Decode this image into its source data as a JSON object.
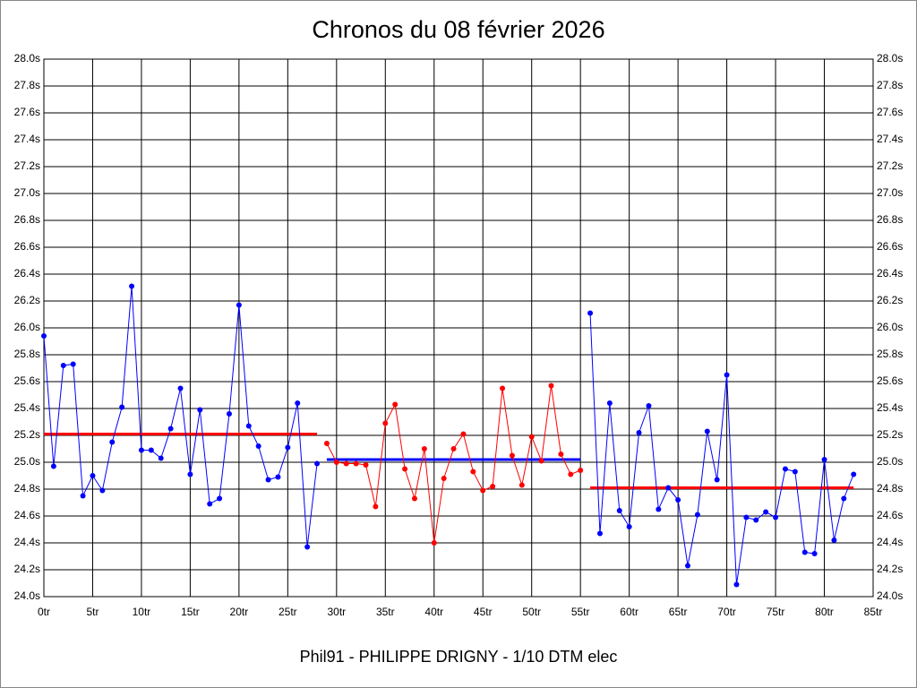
{
  "chart_data": {
    "type": "line",
    "title": "Chronos du 08 février 2026",
    "footer": "Phil91 - PHILIPPE DRIGNY - 1/10 DTM elec",
    "xlim": [
      0,
      85
    ],
    "ylim": [
      24,
      28
    ],
    "grid": true,
    "xticks": [
      {
        "value": 0,
        "label": "0tr"
      },
      {
        "value": 5,
        "label": "5tr"
      },
      {
        "value": 10,
        "label": "10tr"
      },
      {
        "value": 15,
        "label": "15tr"
      },
      {
        "value": 20,
        "label": "20tr"
      },
      {
        "value": 25,
        "label": "25tr"
      },
      {
        "value": 30,
        "label": "30tr"
      },
      {
        "value": 35,
        "label": "35tr"
      },
      {
        "value": 40,
        "label": "40tr"
      },
      {
        "value": 45,
        "label": "45tr"
      },
      {
        "value": 50,
        "label": "50tr"
      },
      {
        "value": 55,
        "label": "55tr"
      },
      {
        "value": 60,
        "label": "60tr"
      },
      {
        "value": 65,
        "label": "65tr"
      },
      {
        "value": 70,
        "label": "70tr"
      },
      {
        "value": 75,
        "label": "75tr"
      },
      {
        "value": 80,
        "label": "80tr"
      },
      {
        "value": 85,
        "label": "85tr"
      }
    ],
    "yticks": [
      {
        "value": 24,
        "label": "24.0s"
      },
      {
        "value": 24.2,
        "label": "24.2s"
      },
      {
        "value": 24.4,
        "label": "24.4s"
      },
      {
        "value": 24.6,
        "label": "24.6s"
      },
      {
        "value": 24.8,
        "label": "24.8s"
      },
      {
        "value": 25,
        "label": "25.0s"
      },
      {
        "value": 25.2,
        "label": "25.2s"
      },
      {
        "value": 25.4,
        "label": "25.4s"
      },
      {
        "value": 25.6,
        "label": "25.6s"
      },
      {
        "value": 25.8,
        "label": "25.8s"
      },
      {
        "value": 26,
        "label": "26.0s"
      },
      {
        "value": 26.2,
        "label": "26.2s"
      },
      {
        "value": 26.4,
        "label": "26.4s"
      },
      {
        "value": 26.6,
        "label": "26.6s"
      },
      {
        "value": 26.8,
        "label": "26.8s"
      },
      {
        "value": 27,
        "label": "27.0s"
      },
      {
        "value": 27.2,
        "label": "27.2s"
      },
      {
        "value": 27.4,
        "label": "27.4s"
      },
      {
        "value": 27.6,
        "label": "27.6s"
      },
      {
        "value": 27.8,
        "label": "27.8s"
      },
      {
        "value": 28,
        "label": "28.0s"
      }
    ],
    "series": [
      {
        "color": "#0000ff",
        "x": [
          0,
          1,
          2,
          3,
          4,
          5,
          6,
          7,
          8,
          9,
          10,
          11,
          12,
          13,
          14,
          15,
          16,
          17,
          18,
          19,
          20,
          21,
          22,
          23,
          24,
          25,
          26,
          27,
          28
        ],
        "values": [
          25.94,
          24.97,
          25.72,
          25.73,
          24.75,
          24.9,
          24.79,
          25.15,
          25.41,
          26.31,
          25.09,
          25.09,
          25.03,
          25.25,
          25.55,
          24.91,
          25.39,
          24.69,
          24.73,
          25.36,
          26.17,
          25.27,
          25.12,
          24.87,
          24.89,
          25.11,
          25.44,
          24.37,
          24.99
        ]
      },
      {
        "color": "#ff0000",
        "x": [
          29,
          30,
          31,
          32,
          33,
          34,
          35,
          36,
          37,
          38,
          39,
          40,
          41,
          42,
          43,
          44,
          45,
          46,
          47,
          48,
          49,
          50,
          51,
          52,
          53,
          54,
          55
        ],
        "values": [
          25.14,
          25.0,
          24.99,
          24.99,
          24.98,
          24.67,
          25.29,
          25.43,
          24.95,
          24.73,
          25.1,
          24.4,
          24.88,
          25.1,
          25.21,
          24.93,
          24.79,
          24.82,
          25.55,
          25.05,
          24.83,
          25.19,
          25.01,
          25.57,
          25.06,
          24.91,
          24.94
        ]
      },
      {
        "color": "#0000ff",
        "x": [
          56,
          57,
          58,
          59,
          60,
          61,
          62,
          63,
          64,
          65,
          66,
          67,
          68,
          69,
          70,
          71,
          72,
          73,
          74,
          75,
          76,
          77,
          78,
          79,
          80,
          81,
          82,
          83
        ],
        "values": [
          26.11,
          24.47,
          25.44,
          24.64,
          24.52,
          25.22,
          25.42,
          24.65,
          24.81,
          24.72,
          24.23,
          24.61,
          25.23,
          24.87,
          25.65,
          24.09,
          24.59,
          24.57,
          24.63,
          24.59,
          24.95,
          24.93,
          24.33,
          24.32,
          25.02,
          24.42,
          24.73,
          24.91
        ]
      }
    ],
    "averages": [
      {
        "color": "#ff0000",
        "value": 25.21,
        "x": [
          0,
          28
        ]
      },
      {
        "color": "#0000ff",
        "value": 25.02,
        "x": [
          29,
          55
        ]
      },
      {
        "color": "#ff0000",
        "value": 24.81,
        "x": [
          56,
          83
        ]
      }
    ]
  }
}
